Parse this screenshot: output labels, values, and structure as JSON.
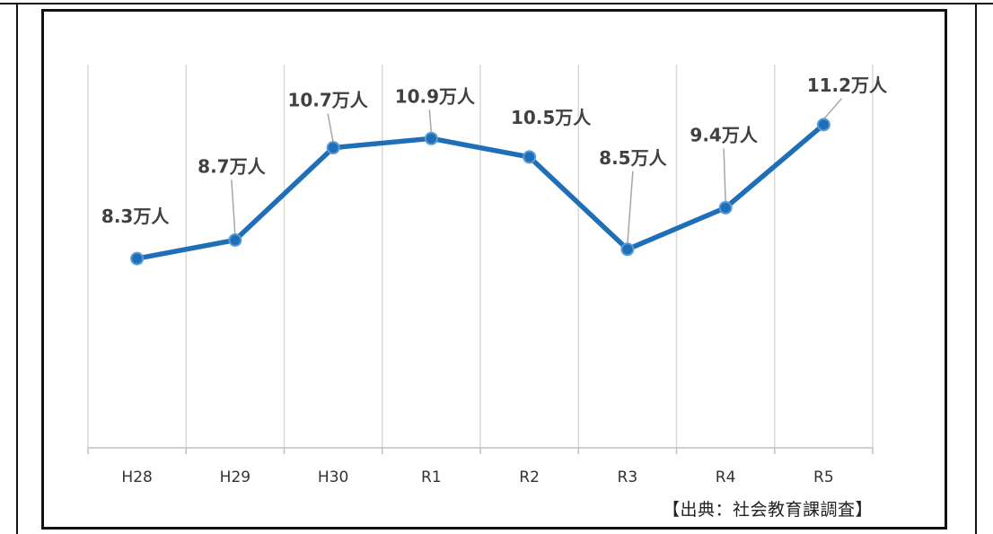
{
  "chart_data": {
    "type": "line",
    "categories": [
      "H28",
      "H29",
      "H30",
      "R1",
      "R2",
      "R3",
      "R4",
      "R5"
    ],
    "values": [
      8.3,
      8.7,
      10.7,
      10.9,
      10.5,
      8.5,
      9.4,
      11.2
    ],
    "data_labels": [
      "8.3万人",
      "8.7万人",
      "10.7万人",
      "10.9万人",
      "10.5万人",
      "8.5万人",
      "9.4万人",
      "11.2万人"
    ],
    "title": "",
    "xlabel": "",
    "ylabel": "",
    "ylim": [
      4.2,
      12.5
    ],
    "grid": "vertical",
    "color": "#1f6fb8"
  },
  "source_note": "【出典：社会教育課調査】"
}
